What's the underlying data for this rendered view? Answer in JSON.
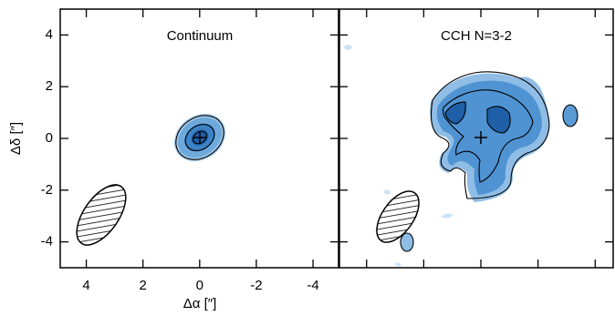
{
  "chart_data": [
    {
      "type": "map",
      "title": "Continuum",
      "xlabel": "Δα [″]",
      "ylabel": "Δδ [″]",
      "xlim": [
        4.92,
        -4.9
      ],
      "ylim": [
        -5,
        5
      ],
      "xticks": [
        4,
        2,
        0,
        -2,
        -4
      ],
      "yticks": [
        4,
        2,
        0,
        -2,
        -4
      ]
    },
    {
      "type": "map",
      "title": "CCH N=3-2",
      "xlim": [
        4.95,
        -4.63
      ],
      "ylim": [
        -5,
        5
      ],
      "xticks": [
        4,
        2,
        0,
        -2,
        -4
      ],
      "yticks": [
        4,
        2,
        0,
        -2,
        -4
      ]
    }
  ]
}
